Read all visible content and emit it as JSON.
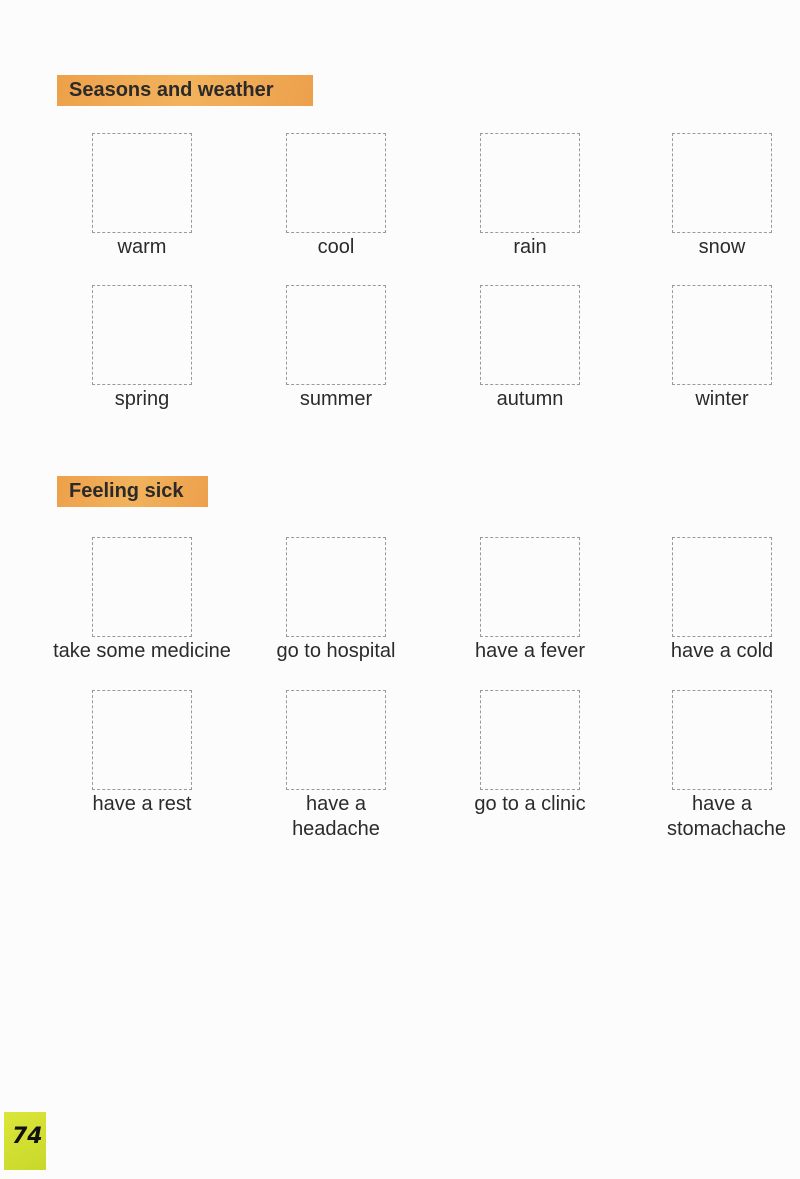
{
  "sections": [
    {
      "title": "Seasons and weather",
      "items": [
        "warm",
        "cool",
        "rain",
        "snow",
        "spring",
        "summer",
        "autumn",
        "winter"
      ]
    },
    {
      "title": "Feeling sick",
      "items": [
        "take some medicine",
        "go to hospital",
        "have a fever",
        "have a cold",
        "have a rest",
        "have a headache",
        "go to a clinic",
        "have a stomachache"
      ]
    }
  ],
  "page_number": "74",
  "colors": {
    "header_highlight": "#f0a850",
    "page_tab": "#d4e030"
  }
}
